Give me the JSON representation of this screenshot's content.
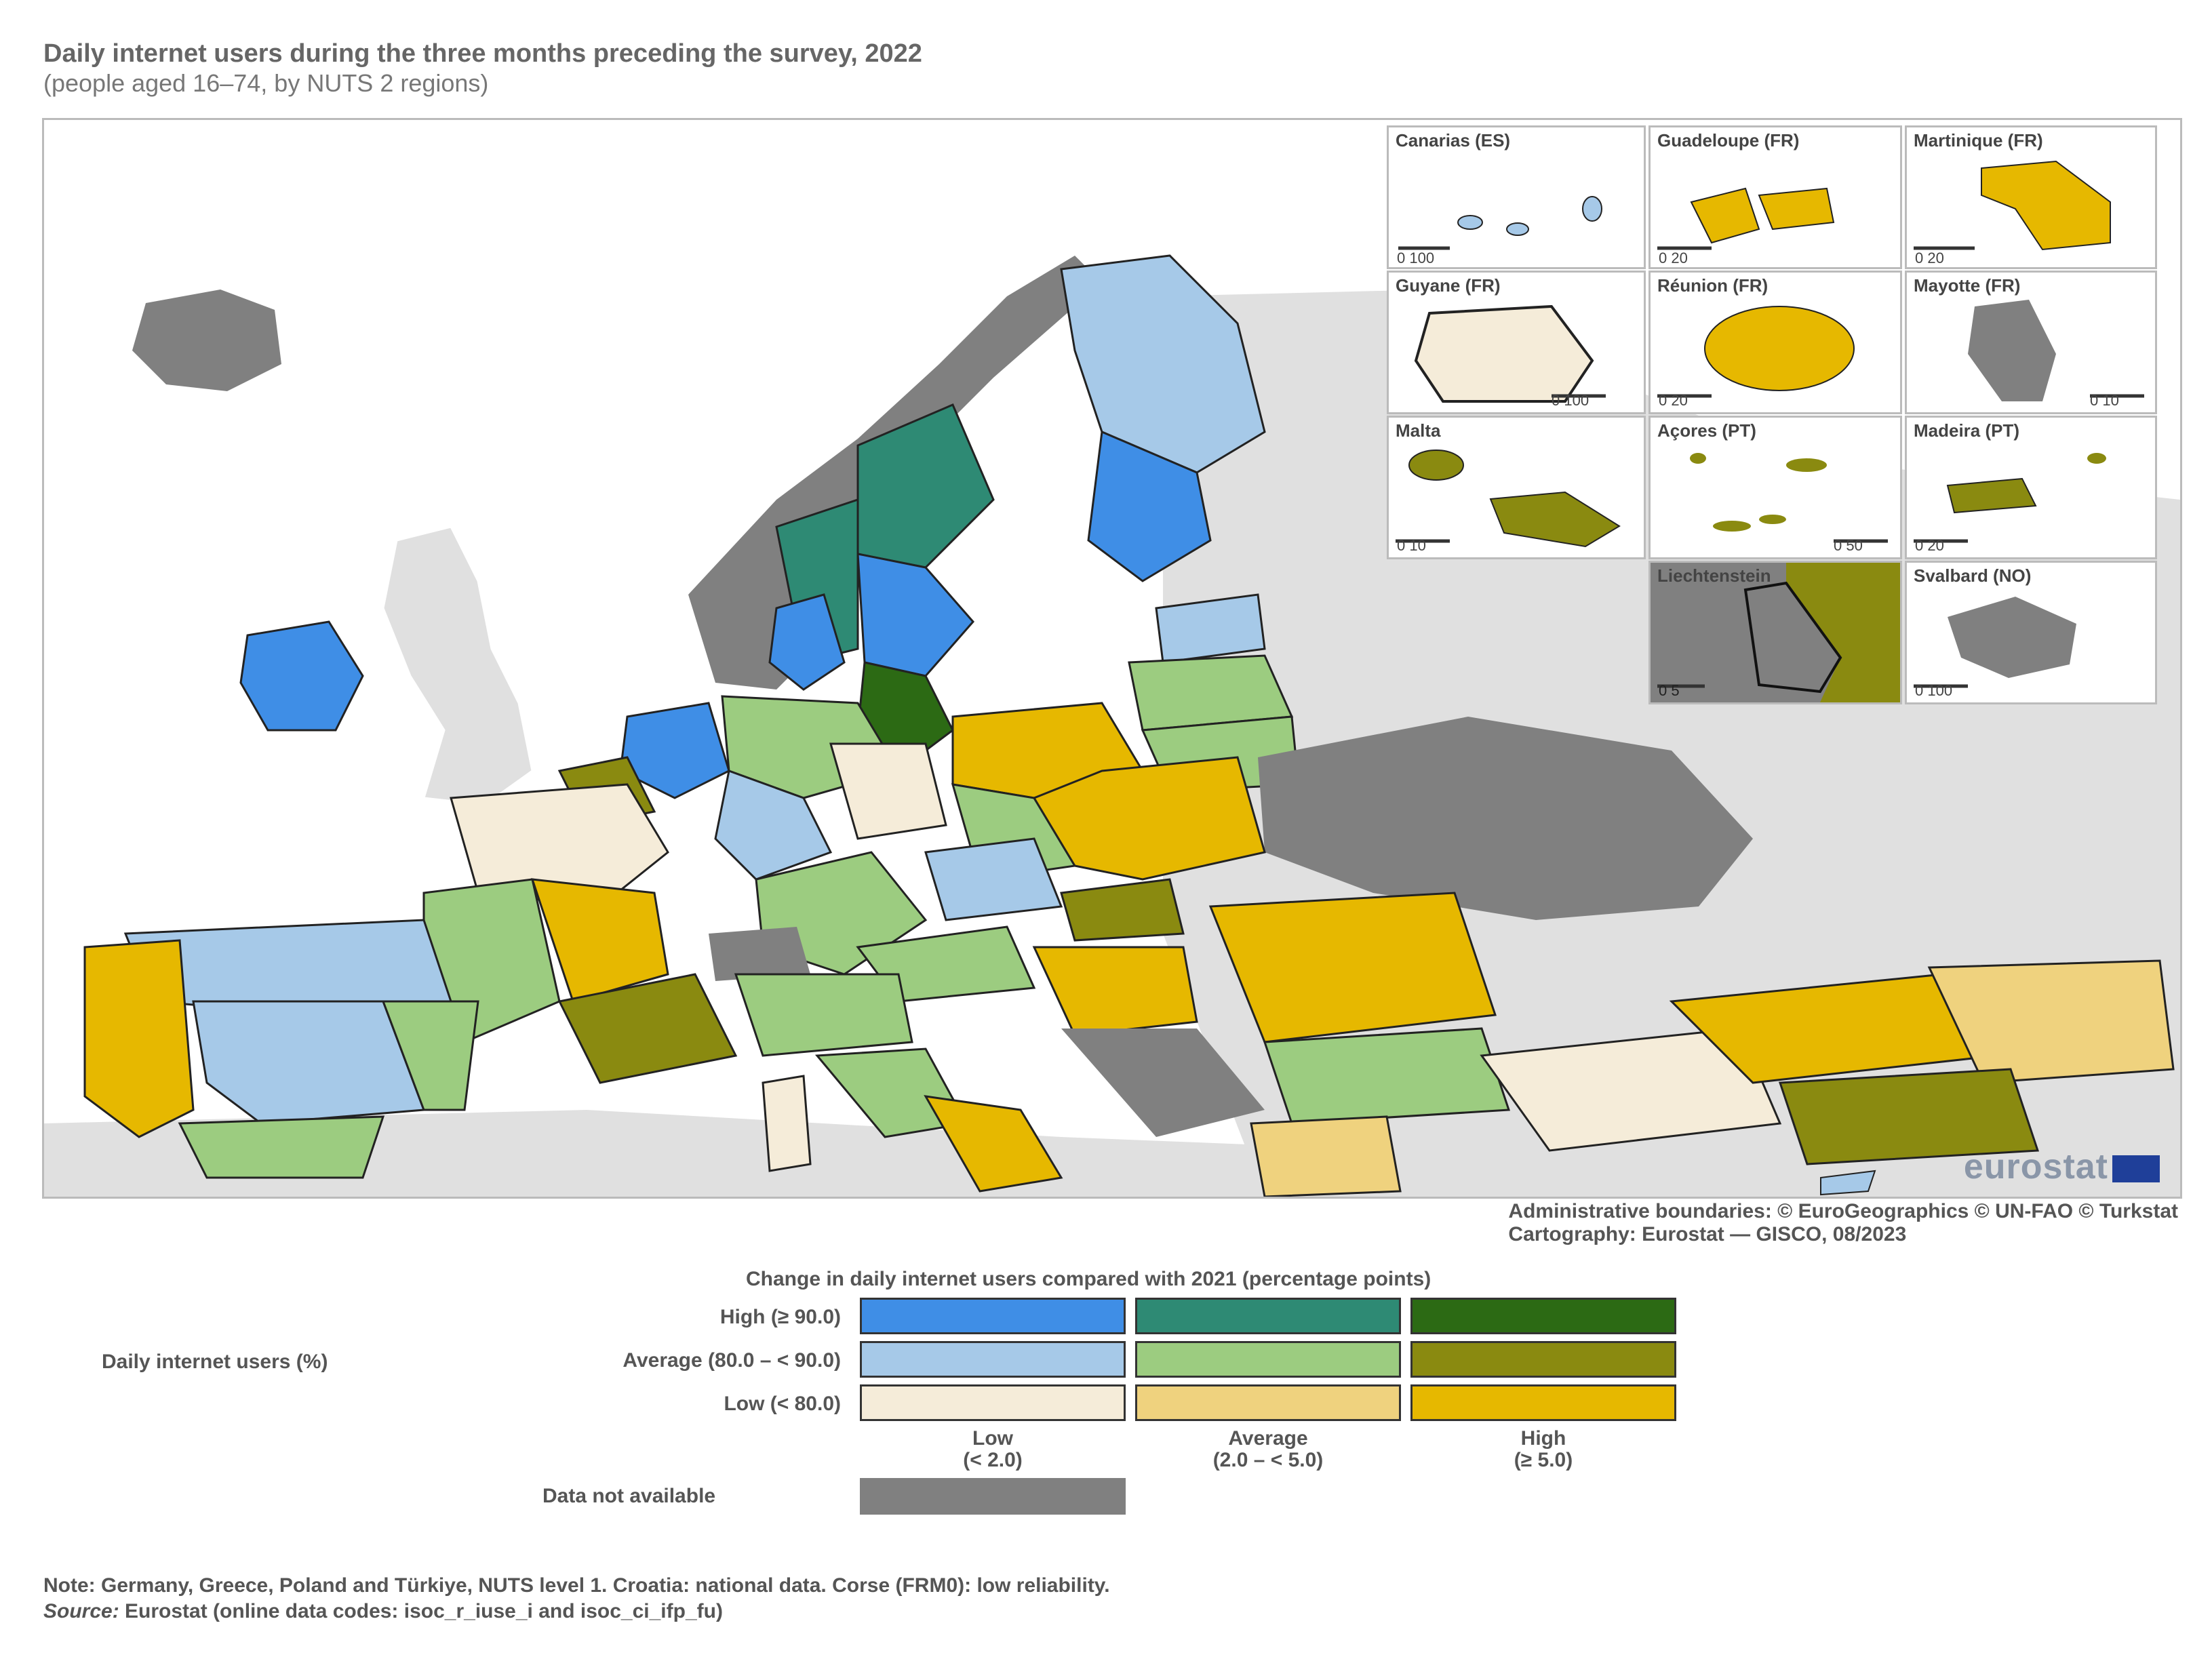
{
  "title": "Daily internet users during the three months preceding the survey, 2022",
  "subtitle": "(people aged 16–74, by NUTS 2 regions)",
  "insets": [
    {
      "label": "Canarias (ES)",
      "scale": "0  100",
      "color": "#a6c9e8"
    },
    {
      "label": "Guadeloupe (FR)",
      "scale": "0  20",
      "color": "#e6b800"
    },
    {
      "label": "Martinique (FR)",
      "scale": "0  20",
      "color": "#e6b800"
    },
    {
      "label": "Guyane (FR)",
      "scale": "0  100",
      "color": "#f5ecd9"
    },
    {
      "label": "Réunion (FR)",
      "scale": "0  20",
      "color": "#e6b800"
    },
    {
      "label": "Mayotte (FR)",
      "scale": "0  10",
      "color": "#808080"
    },
    {
      "label": "Malta",
      "scale": "0  10",
      "color": "#8a8a10"
    },
    {
      "label": "Açores (PT)",
      "scale": "0  50",
      "color": "#8a8a10"
    },
    {
      "label": "Madeira (PT)",
      "scale": "0  20",
      "color": "#8a8a10"
    },
    {
      "label": "Liechtenstein",
      "scale": "0  5",
      "color": "#808080"
    },
    {
      "label": "Svalbard (NO)",
      "scale": "0  100",
      "color": "#808080"
    }
  ],
  "logo": "eurostat",
  "credits": {
    "line1": "Administrative boundaries: © EuroGeographics © UN-FAO © Turkstat",
    "line2": "Cartography: Eurostat — GISCO, 08/2023"
  },
  "legend": {
    "title": "Change in daily internet users compared with 2021 (percentage points)",
    "axis_label": "Daily internet users (%)",
    "rows": [
      "High (≥ 90.0)",
      "Average (80.0 – < 90.0)",
      "Low (< 80.0)"
    ],
    "columns": [
      {
        "line1": "Low",
        "line2": "(< 2.0)"
      },
      {
        "line1": "Average",
        "line2": "(2.0 – < 5.0)"
      },
      {
        "line1": "High",
        "line2": "(≥ 5.0)"
      }
    ],
    "colors": [
      [
        "#3f8ee6",
        "#2e8a74",
        "#2c6a14"
      ],
      [
        "#a6c9e8",
        "#9ccc80",
        "#8a8a10"
      ],
      [
        "#f5ecd9",
        "#efd27e",
        "#e6b800"
      ]
    ],
    "na_label": "Data not available",
    "na_color": "#808080"
  },
  "note": "Note: Germany, Greece, Poland and Türkiye, NUTS level 1. Croatia: national data. Corse (FRM0): low reliability.",
  "source_label": "Source:",
  "source_text": " Eurostat (online data codes: isoc_r_iuse_i and isoc_ci_ifp_fu)"
}
